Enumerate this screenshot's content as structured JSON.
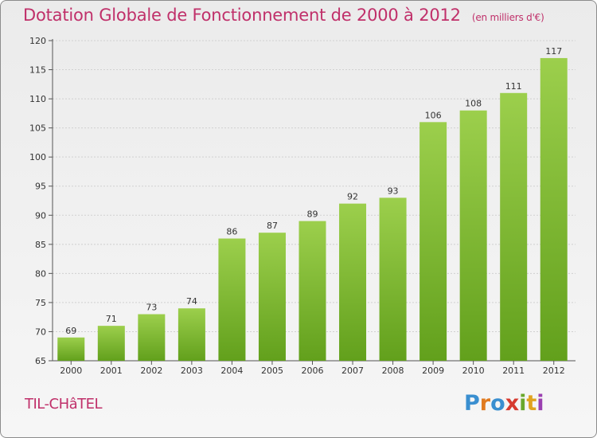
{
  "header": {
    "title": "Dotation Globale de Fonctionnement de 2000 à 2012",
    "unit": "(en milliers d'€)"
  },
  "footer": {
    "commune": "TIL-CHâTEL",
    "logo": "Proxiti",
    "logo_colors": [
      "#3a8fd0",
      "#e07a1f",
      "#3a8fd0",
      "#d63a2f",
      "#6aa82c",
      "#e0a31f",
      "#9a3fb0"
    ]
  },
  "chart_data": {
    "type": "bar",
    "categories": [
      "2000",
      "2001",
      "2002",
      "2003",
      "2004",
      "2005",
      "2006",
      "2007",
      "2008",
      "2009",
      "2010",
      "2011",
      "2012"
    ],
    "values": [
      69,
      71,
      73,
      74,
      86,
      87,
      89,
      92,
      93,
      106,
      108,
      111,
      117
    ],
    "data_labels": [
      "69",
      "71",
      "73",
      "74",
      "86",
      "87",
      "89",
      "92",
      "93",
      "106",
      "108",
      "111",
      "117"
    ],
    "y_ticks": [
      "65",
      "70",
      "75",
      "80",
      "85",
      "90",
      "95",
      "100",
      "105",
      "110",
      "115",
      "120"
    ],
    "ylim": [
      65,
      120
    ],
    "grid": true,
    "bar_color_top": "#9ccf4c",
    "bar_color_bottom": "#62a01c"
  }
}
